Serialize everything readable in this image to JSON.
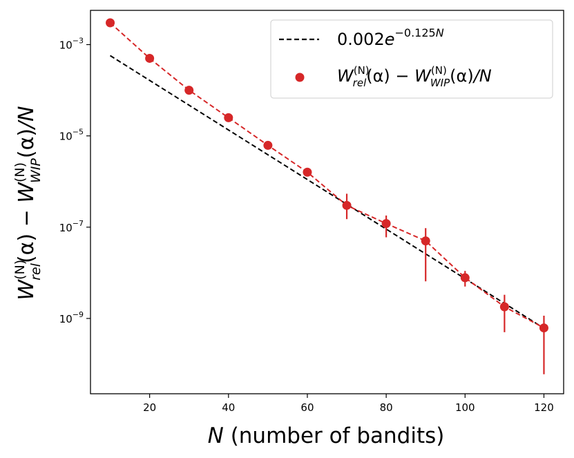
{
  "chart_data": {
    "type": "scatter",
    "title": "",
    "xlabel": "(number of bandits)",
    "xlabel_var": "N",
    "ylabel": "W_rel^(N)(α) − W_WIP^(N)(α)/N",
    "xlim": [
      5,
      125
    ],
    "ylim_log10": [
      -10.65,
      -2.25
    ],
    "y_scale": "log",
    "x_ticks": [
      20,
      40,
      60,
      80,
      100,
      120
    ],
    "x_tick_labels": [
      "20",
      "40",
      "60",
      "80",
      "100",
      "120"
    ],
    "y_ticks_log10": [
      -3,
      -5,
      -7,
      -9
    ],
    "y_tick_labels": [
      {
        "base": "10",
        "exp": "−3"
      },
      {
        "base": "10",
        "exp": "−5"
      },
      {
        "base": "10",
        "exp": "−7"
      },
      {
        "base": "10",
        "exp": "−9"
      }
    ],
    "grid": false,
    "legend_position": "top-right",
    "series": [
      {
        "name": "0.002e^(−0.125N)",
        "kind": "line",
        "style": "dashed",
        "color": "#000000",
        "x": [
          10,
          120
        ],
        "y": [
          0.000573,
          6.11e-10
        ]
      },
      {
        "name": "W_rel^(N)(α) − W_WIP^(N)(α)/N",
        "kind": "scatter-errorbar",
        "color": "#d62728",
        "x": [
          10,
          20,
          30,
          40,
          50,
          60,
          70,
          80,
          90,
          100,
          110,
          120
        ],
        "y": [
          0.003,
          0.0005,
          0.0001,
          2.5e-05,
          6.2e-06,
          1.6e-06,
          3e-07,
          1.2e-07,
          5e-08,
          7.8e-09,
          1.8e-09,
          6.2e-10
        ],
        "y_err_low": [
          0.003,
          0.0005,
          0.0001,
          2.5e-05,
          6.2e-06,
          1.6e-06,
          1.5e-07,
          6e-08,
          6.5e-09,
          5e-09,
          5e-10,
          6e-11
        ],
        "y_err_high": [
          0.003,
          0.0005,
          0.0001,
          2.5e-05,
          6.2e-06,
          1.6e-06,
          5.4e-07,
          1.8e-07,
          9.5e-08,
          1.1e-08,
          3.3e-09,
          1.15e-09
        ]
      }
    ],
    "legend": {
      "fit_label": {
        "coef": "0.002",
        "base": "e",
        "exp": "−0.125",
        "exp_var": "N"
      },
      "data_label": {
        "w": "W",
        "sup": "(N)",
        "sub1": "rel",
        "sub2": "WIP",
        "alpha": "(α)",
        "minus": " − ",
        "suffix": "/N"
      }
    }
  }
}
